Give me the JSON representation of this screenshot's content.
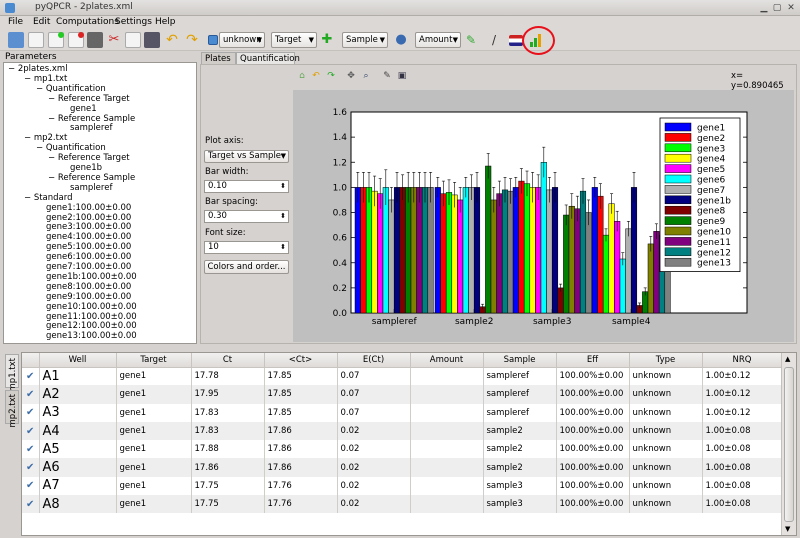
{
  "window": {
    "title": "pyQPCR - 2plates.xml"
  },
  "menu": [
    "File",
    "Edit",
    "Computations",
    "Settings",
    "Help"
  ],
  "toolbar": {
    "type_combo": "unknown",
    "target_combo": "Target",
    "sample_combo": "Sample",
    "amount_combo": "Amount"
  },
  "colors": {
    "highlight_circle": "#e8101a",
    "selection": "#3e6ea8"
  },
  "parameters": {
    "title": "Parameters",
    "tree": [
      {
        "text": "2plates.xml",
        "level": 0,
        "prefix": "−"
      },
      {
        "text": "mp1.txt",
        "level": 1,
        "prefix": "−"
      },
      {
        "text": "Quantification",
        "level": 2,
        "prefix": "−"
      },
      {
        "text": "Reference Target",
        "level": 3,
        "prefix": "−"
      },
      {
        "text": "gene1",
        "level": 4,
        "prefix": ""
      },
      {
        "text": "Reference Sample",
        "level": 3,
        "prefix": "−"
      },
      {
        "text": "sampleref",
        "level": 4,
        "prefix": ""
      },
      {
        "text": "mp2.txt",
        "level": 1,
        "prefix": "−"
      },
      {
        "text": "Quantification",
        "level": 2,
        "prefix": "−"
      },
      {
        "text": "Reference Target",
        "level": 3,
        "prefix": "−"
      },
      {
        "text": "gene1b",
        "level": 4,
        "prefix": ""
      },
      {
        "text": "Reference Sample",
        "level": 3,
        "prefix": "−"
      },
      {
        "text": "sampleref",
        "level": 4,
        "prefix": ""
      },
      {
        "text": "Standard",
        "level": 1,
        "prefix": "−"
      },
      {
        "text": "gene1:100.00±0.00",
        "level": 2,
        "prefix": ""
      },
      {
        "text": "gene2:100.00±0.00",
        "level": 2,
        "prefix": ""
      },
      {
        "text": "gene3:100.00±0.00",
        "level": 2,
        "prefix": ""
      },
      {
        "text": "gene4:100.00±0.00",
        "level": 2,
        "prefix": ""
      },
      {
        "text": "gene5:100.00±0.00",
        "level": 2,
        "prefix": ""
      },
      {
        "text": "gene6:100.00±0.00",
        "level": 2,
        "prefix": ""
      },
      {
        "text": "gene7:100.00±0.00",
        "level": 2,
        "prefix": ""
      },
      {
        "text": "gene1b:100.00±0.00",
        "level": 2,
        "prefix": ""
      },
      {
        "text": "gene8:100.00±0.00",
        "level": 2,
        "prefix": ""
      },
      {
        "text": "gene9:100.00±0.00",
        "level": 2,
        "prefix": ""
      },
      {
        "text": "gene10:100.00±0.00",
        "level": 2,
        "prefix": ""
      },
      {
        "text": "gene11:100.00±0.00",
        "level": 2,
        "prefix": ""
      },
      {
        "text": "gene12:100.00±0.00",
        "level": 2,
        "prefix": ""
      },
      {
        "text": "gene13:100.00±0.00",
        "level": 2,
        "prefix": ""
      }
    ]
  },
  "tabs": {
    "plates": "Plates",
    "quantification": "Quantification"
  },
  "coords": "x= y=0.890465",
  "controls": {
    "plot_axis_label": "Plot axis:",
    "plot_axis_value": "Target vs Sample",
    "bar_width_label": "Bar width:",
    "bar_width_value": "0.10",
    "bar_spacing_label": "Bar spacing:",
    "bar_spacing_value": "0.30",
    "font_size_label": "Font size:",
    "font_size_value": "10",
    "colors_button": "Colors and order..."
  },
  "chart_data": {
    "type": "bar",
    "categories": [
      "sampleref",
      "sample2",
      "sample3",
      "sample4"
    ],
    "ylim": [
      0,
      1.6
    ],
    "yticks": [
      "0.0",
      "0.2",
      "0.4",
      "0.6",
      "0.8",
      "1.0",
      "1.2",
      "1.4",
      "1.6"
    ],
    "legend_position": "top-right",
    "series": [
      {
        "name": "gene1",
        "color": "#0000ff",
        "values": [
          1.0,
          1.0,
          1.0,
          1.0
        ],
        "err": [
          0.12,
          0.08,
          0.08,
          0.08
        ]
      },
      {
        "name": "gene2",
        "color": "#ff0000",
        "values": [
          1.0,
          0.95,
          1.05,
          0.93
        ],
        "err": [
          0.12,
          0.1,
          0.1,
          0.1
        ]
      },
      {
        "name": "gene3",
        "color": "#00ff00",
        "values": [
          1.0,
          0.96,
          1.03,
          0.62
        ],
        "err": [
          0.12,
          0.1,
          0.1,
          0.05
        ]
      },
      {
        "name": "gene4",
        "color": "#ffff00",
        "values": [
          0.97,
          0.94,
          1.0,
          0.87
        ],
        "err": [
          0.12,
          0.1,
          0.12,
          0.08
        ]
      },
      {
        "name": "gene5",
        "color": "#ff00ff",
        "values": [
          0.95,
          0.9,
          1.0,
          0.73
        ],
        "err": [
          0.12,
          0.1,
          0.1,
          0.08
        ]
      },
      {
        "name": "gene6",
        "color": "#00ffff",
        "values": [
          1.0,
          1.0,
          1.2,
          0.43
        ],
        "err": [
          0.14,
          0.08,
          0.12,
          0.05
        ]
      },
      {
        "name": "gene7",
        "color": "#b0b0b0",
        "values": [
          0.9,
          1.0,
          0.98,
          0.67
        ],
        "err": [
          0.1,
          0.1,
          0.1,
          0.06
        ]
      },
      {
        "name": "gene1b",
        "color": "#000080",
        "values": [
          1.0,
          1.0,
          1.0,
          1.0
        ],
        "err": [
          0.12,
          0.12,
          0.12,
          0.12
        ]
      },
      {
        "name": "gene8",
        "color": "#800000",
        "values": [
          1.0,
          0.05,
          0.2,
          0.06
        ],
        "err": [
          0.1,
          0.02,
          0.03,
          0.02
        ]
      },
      {
        "name": "gene9",
        "color": "#008000",
        "values": [
          1.0,
          1.17,
          0.78,
          0.17
        ],
        "err": [
          0.12,
          0.1,
          0.08,
          0.03
        ]
      },
      {
        "name": "gene10",
        "color": "#808000",
        "values": [
          1.0,
          0.9,
          0.85,
          0.55
        ],
        "err": [
          0.12,
          0.1,
          0.1,
          0.06
        ]
      },
      {
        "name": "gene11",
        "color": "#800080",
        "values": [
          1.0,
          0.95,
          0.83,
          0.65
        ],
        "err": [
          0.12,
          0.1,
          0.1,
          0.06
        ]
      },
      {
        "name": "gene12",
        "color": "#008080",
        "values": [
          1.0,
          0.98,
          0.97,
          0.62
        ],
        "err": [
          0.12,
          0.1,
          0.1,
          0.05
        ]
      },
      {
        "name": "gene13",
        "color": "#808080",
        "values": [
          1.0,
          0.97,
          0.8,
          0.6
        ],
        "err": [
          0.12,
          0.1,
          0.1,
          0.05
        ]
      }
    ]
  },
  "side_tabs": [
    "mp1.txt",
    "mp2.txt"
  ],
  "table": {
    "headers": [
      "",
      "Well",
      "Target",
      "Ct",
      "<Ct>",
      "E(Ct)",
      "Amount",
      "Sample",
      "Eff",
      "Type",
      "NRQ"
    ],
    "rows": [
      [
        "✔",
        "A1",
        "gene1",
        "17.78",
        "17.85",
        "0.07",
        "",
        "sampleref",
        "100.00%±0.00",
        "unknown",
        "1.00±0.12"
      ],
      [
        "✔",
        "A2",
        "gene1",
        "17.95",
        "17.85",
        "0.07",
        "",
        "sampleref",
        "100.00%±0.00",
        "unknown",
        "1.00±0.12"
      ],
      [
        "✔",
        "A3",
        "gene1",
        "17.83",
        "17.85",
        "0.07",
        "",
        "sampleref",
        "100.00%±0.00",
        "unknown",
        "1.00±0.12"
      ],
      [
        "✔",
        "A4",
        "gene1",
        "17.83",
        "17.86",
        "0.02",
        "",
        "sample2",
        "100.00%±0.00",
        "unknown",
        "1.00±0.08"
      ],
      [
        "✔",
        "A5",
        "gene1",
        "17.88",
        "17.86",
        "0.02",
        "",
        "sample2",
        "100.00%±0.00",
        "unknown",
        "1.00±0.08"
      ],
      [
        "✔",
        "A6",
        "gene1",
        "17.86",
        "17.86",
        "0.02",
        "",
        "sample2",
        "100.00%±0.00",
        "unknown",
        "1.00±0.08"
      ],
      [
        "✔",
        "A7",
        "gene1",
        "17.75",
        "17.76",
        "0.02",
        "",
        "sample3",
        "100.00%±0.00",
        "unknown",
        "1.00±0.08"
      ],
      [
        "✔",
        "A8",
        "gene1",
        "17.75",
        "17.76",
        "0.02",
        "",
        "sample3",
        "100.00%±0.00",
        "unknown",
        "1.00±0.08"
      ]
    ]
  }
}
